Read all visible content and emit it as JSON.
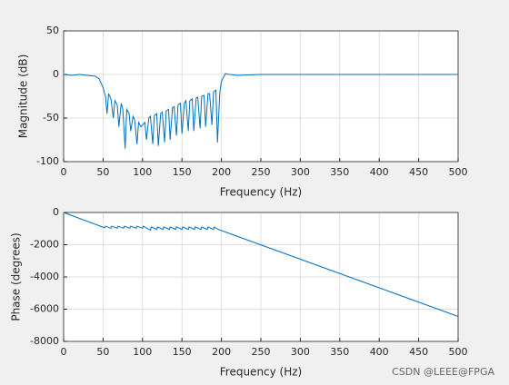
{
  "chart_data": [
    {
      "type": "line",
      "xlabel": "Frequency (Hz)",
      "ylabel": "Magnitude (dB)",
      "xlim": [
        0,
        500
      ],
      "xticks": [
        0,
        50,
        100,
        150,
        200,
        250,
        300,
        350,
        400,
        450,
        500
      ],
      "ylim": [
        -100,
        50
      ],
      "yticks": [
        -100,
        -50,
        0,
        50
      ],
      "grid": true,
      "series": [
        {
          "color": "#0072bd",
          "x": [
            0,
            10,
            20,
            30,
            40,
            45,
            50,
            53,
            55,
            57,
            60,
            63,
            65,
            68,
            70,
            73,
            75,
            78,
            80,
            83,
            85,
            88,
            90,
            93,
            95,
            98,
            100,
            103,
            105,
            108,
            110,
            113,
            115,
            118,
            120,
            123,
            125,
            128,
            130,
            133,
            135,
            138,
            140,
            143,
            145,
            148,
            150,
            153,
            155,
            158,
            160,
            163,
            165,
            168,
            170,
            173,
            175,
            178,
            180,
            183,
            185,
            188,
            190,
            193,
            195,
            198,
            200,
            205,
            210,
            220,
            250,
            300,
            400,
            500
          ],
          "values": [
            0,
            -1,
            0,
            -1,
            -2,
            -5,
            -15,
            -25,
            -45,
            -22,
            -28,
            -50,
            -30,
            -35,
            -60,
            -33,
            -40,
            -85,
            -40,
            -45,
            -65,
            -48,
            -52,
            -80,
            -55,
            -60,
            -58,
            -55,
            -75,
            -50,
            -48,
            -80,
            -47,
            -45,
            -82,
            -45,
            -43,
            -78,
            -42,
            -40,
            -75,
            -38,
            -37,
            -70,
            -35,
            -33,
            -68,
            -33,
            -30,
            -65,
            -30,
            -28,
            -65,
            -27,
            -26,
            -62,
            -25,
            -24,
            -60,
            -22,
            -22,
            -58,
            -20,
            -18,
            -78,
            -20,
            -8,
            1,
            0,
            -1,
            0,
            0,
            0,
            0
          ]
        }
      ]
    },
    {
      "type": "line",
      "xlabel": "Frequency (Hz)",
      "ylabel": "Phase (degrees)",
      "xlim": [
        0,
        500
      ],
      "xticks": [
        0,
        50,
        100,
        150,
        200,
        250,
        300,
        350,
        400,
        450,
        500
      ],
      "ylim": [
        -8000,
        0
      ],
      "yticks": [
        -8000,
        -6000,
        -4000,
        -2000,
        0
      ],
      "grid": true,
      "series": [
        {
          "color": "#0072bd",
          "x": [
            0,
            52,
            53,
            60,
            61,
            68,
            69,
            76,
            77,
            84,
            85,
            92,
            93,
            100,
            101,
            110,
            111,
            118,
            119,
            126,
            127,
            134,
            135,
            142,
            143,
            150,
            151,
            158,
            159,
            166,
            167,
            174,
            175,
            182,
            183,
            190,
            191,
            196,
            500
          ],
          "values": [
            0,
            -950,
            -850,
            -980,
            -850,
            -980,
            -850,
            -980,
            -850,
            -980,
            -850,
            -980,
            -850,
            -980,
            -850,
            -1100,
            -900,
            -1050,
            -900,
            -1050,
            -900,
            -1050,
            -900,
            -1050,
            -900,
            -1050,
            -900,
            -1050,
            -900,
            -1050,
            -900,
            -1050,
            -900,
            -1050,
            -900,
            -1050,
            -900,
            -1050,
            -6450
          ]
        }
      ]
    }
  ],
  "watermark": "CSDN @LEEE@FPGA"
}
